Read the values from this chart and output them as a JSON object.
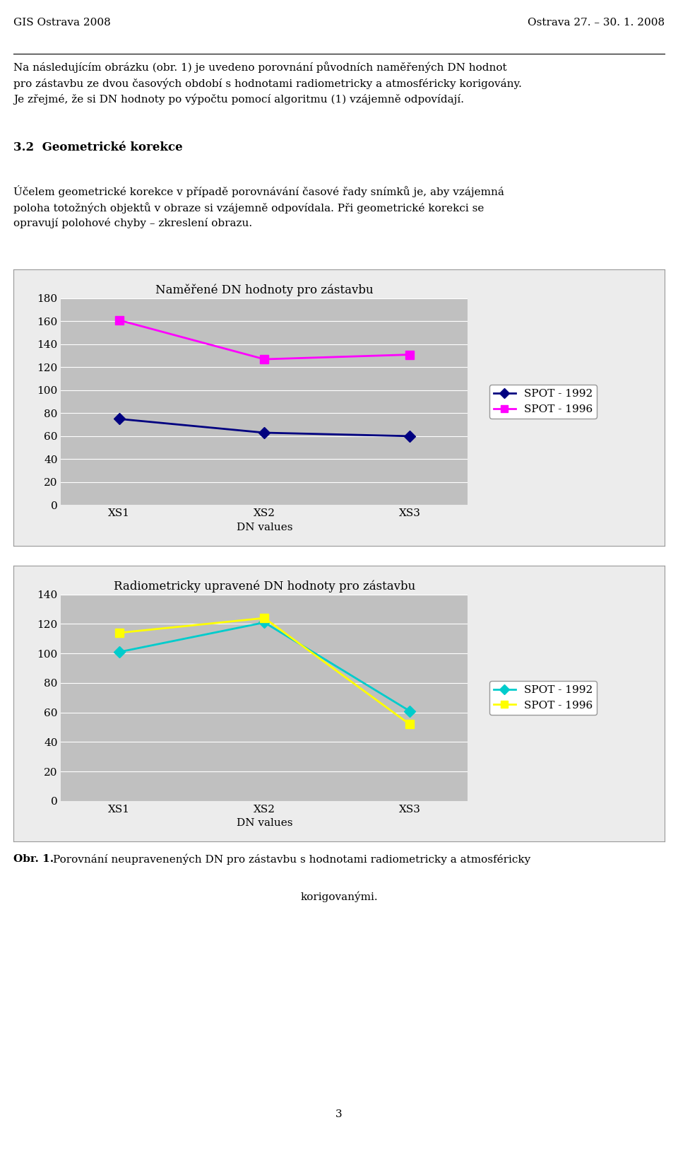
{
  "header_left": "GIS Ostrava 2008",
  "header_right": "Ostrava 27. – 30. 1. 2008",
  "para1": "Na následujícím obrázku (obr. 1) je uvedeno porovnání původních naměřených DN hodnot\npro zástavbu ze dvou časových období s hodnotami radiometricky a atmosféricky korigovány.\nJe zřejmé, že si DN hodnoty po výpočtu pomocí algoritmu (1) vzájemně odpovídají.",
  "section_title": "3.2  Geometrické korekce",
  "para2": "Účelem geometrické korekce v případě porovnávání časové řady snímků je, aby vzájemná\npoloha totožných objektů v obraze si vzájemně odpovídala. Při geometrické korekci se\nopravují polohové chyby – zkreslení obrazu.",
  "chart1_title": "Naměřené DN hodnoty pro zástavbu",
  "chart1_xlabel": "DN values",
  "chart1_categories": [
    "XS1",
    "XS2",
    "XS3"
  ],
  "chart1_ylim": [
    0,
    180
  ],
  "chart1_yticks": [
    0,
    20,
    40,
    60,
    80,
    100,
    120,
    140,
    160,
    180
  ],
  "chart1_series": [
    {
      "label": "SPOT - 1992",
      "values": [
        75,
        63,
        60
      ],
      "color": "#000080",
      "marker": "D"
    },
    {
      "label": "SPOT - 1996",
      "values": [
        161,
        127,
        131
      ],
      "color": "#FF00FF",
      "marker": "s"
    }
  ],
  "chart2_title": "Radiometricky upravené DN hodnoty pro zástavbu",
  "chart2_xlabel": "DN values",
  "chart2_categories": [
    "XS1",
    "XS2",
    "XS3"
  ],
  "chart2_ylim": [
    0,
    140
  ],
  "chart2_yticks": [
    0,
    20,
    40,
    60,
    80,
    100,
    120,
    140
  ],
  "chart2_series": [
    {
      "label": "SPOT - 1992",
      "values": [
        101,
        121,
        61
      ],
      "color": "#00CCCC",
      "marker": "D"
    },
    {
      "label": "SPOT - 1996",
      "values": [
        114,
        124,
        52
      ],
      "color": "#FFFF00",
      "marker": "s"
    }
  ],
  "caption_bold": "Obr. 1.",
  "caption_rest": " Porovnání neupravenených DN pro zástavbu s hodnotami radiometricky a atmosféricky",
  "caption_line2": "korigovanými.",
  "page_number": "3",
  "chart_bg": "#C0C0C0",
  "chart_outer_bg": "#ECECEC",
  "body_fontsize": 11,
  "title_fontsize": 12
}
